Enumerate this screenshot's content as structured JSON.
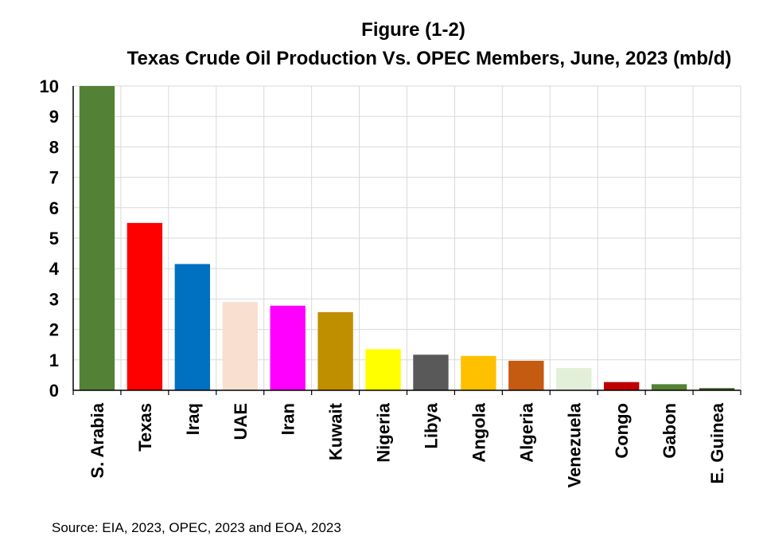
{
  "chart_data": {
    "type": "bar",
    "title": "Figure (1-2)",
    "subtitle": "Texas Crude Oil Production Vs. OPEC Members, June, 2023 (mb/d)",
    "xlabel": "",
    "ylabel": "",
    "ylim": [
      0,
      10
    ],
    "yticks": [
      "0",
      "1",
      "2",
      "3",
      "4",
      "5",
      "6",
      "7",
      "8",
      "9",
      "10"
    ],
    "grid": true,
    "legend": "none",
    "categories": [
      "S. Arabia",
      "Texas",
      "Iraq",
      "UAE",
      "Iran",
      "Kuwait",
      "Nigeria",
      "Libya",
      "Angola",
      "Algeria",
      "Venezuela",
      "Congo",
      "Gabon",
      "E. Guinea"
    ],
    "values": [
      10,
      5.5,
      4.15,
      2.9,
      2.78,
      2.57,
      1.35,
      1.17,
      1.13,
      0.97,
      0.73,
      0.27,
      0.2,
      0.07
    ],
    "colors": [
      "#538135",
      "#ff0000",
      "#0070c0",
      "#f8dfd0",
      "#ff00ff",
      "#bf8f00",
      "#ffff00",
      "#595959",
      "#ffc000",
      "#c55a11",
      "#e2efd9",
      "#c00000",
      "#548235",
      "#375623"
    ]
  },
  "source": "Source: EIA, 2023, OPEC, 2023 and EOA, 2023"
}
